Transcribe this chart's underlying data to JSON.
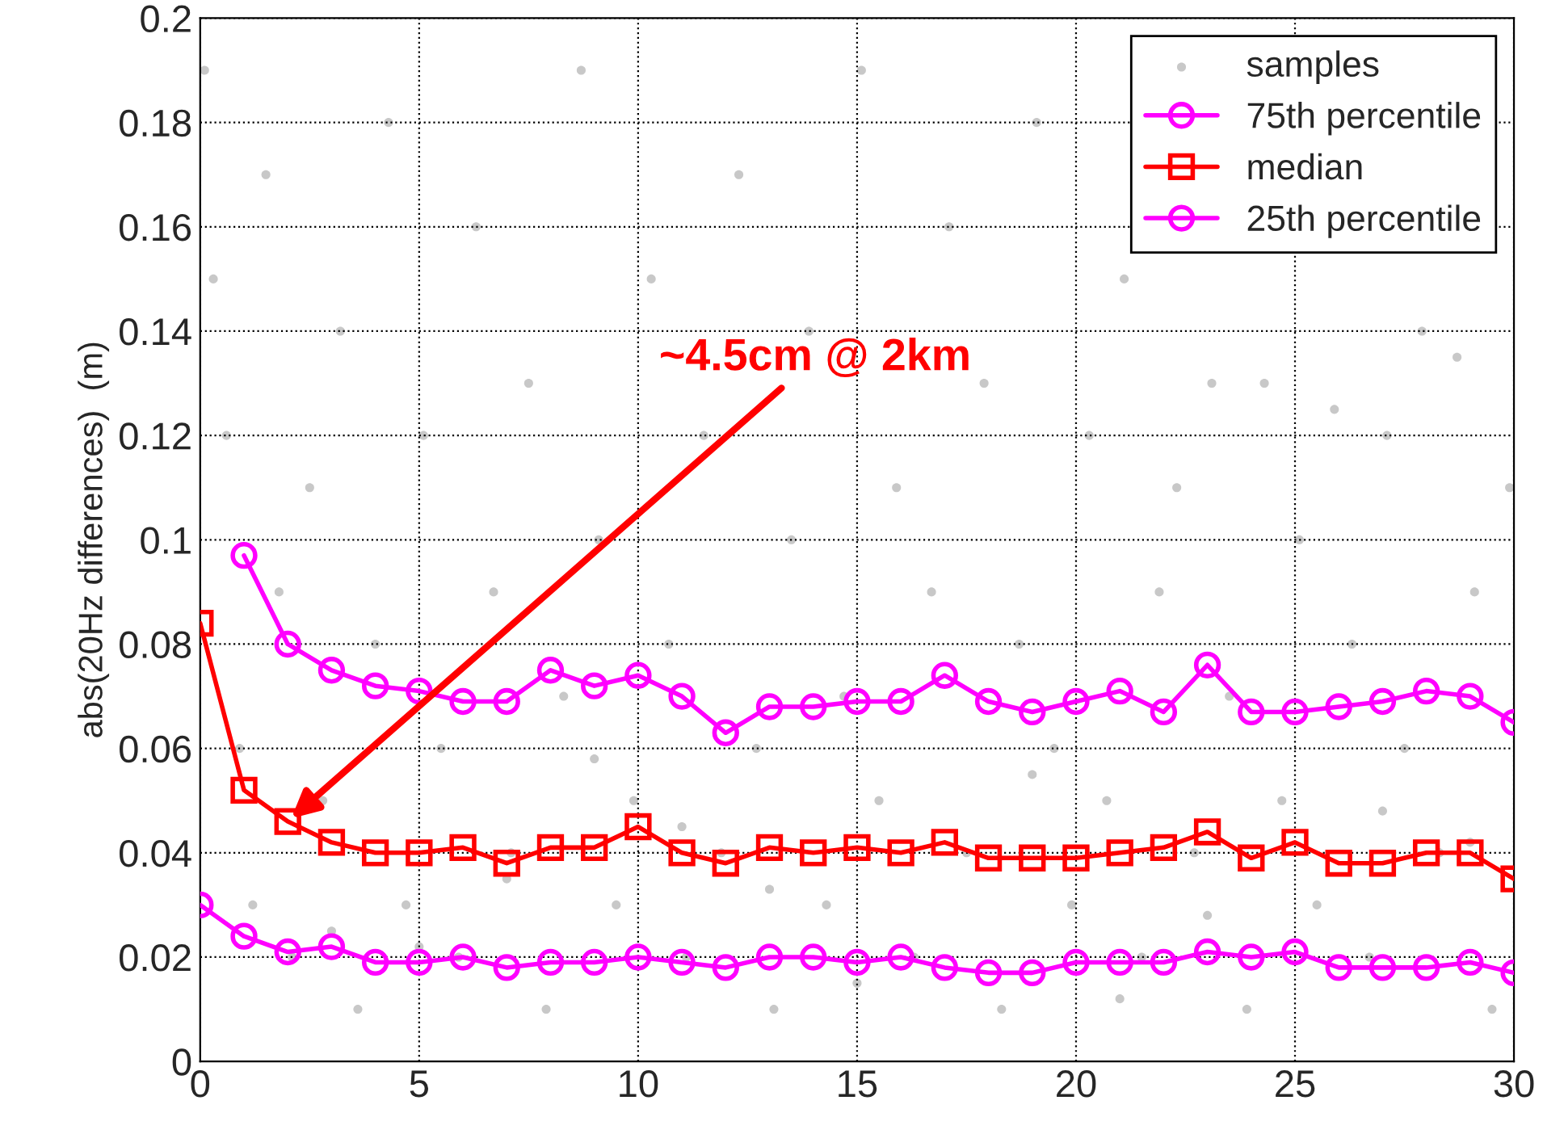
{
  "chart_data": {
    "type": "line",
    "ylabel": "abs(20Hz differences)  (m)",
    "xlim": [
      0,
      30
    ],
    "ylim": [
      0,
      0.2
    ],
    "xticks": [
      0,
      5,
      10,
      15,
      20,
      25,
      30
    ],
    "yticks": [
      0,
      0.02,
      0.04,
      0.06,
      0.08,
      0.1,
      0.12,
      0.14,
      0.16,
      0.18,
      0.2
    ],
    "grid": true,
    "legend": "top right",
    "x": [
      0,
      1,
      2,
      3,
      4,
      5,
      6,
      7,
      8,
      9,
      10,
      11,
      12,
      13,
      14,
      15,
      16,
      17,
      18,
      19,
      20,
      21,
      22,
      23,
      24,
      25,
      26,
      27,
      28,
      29,
      30
    ],
    "series": [
      {
        "name": "samples",
        "type": "scatter",
        "color": "#c8c8c8",
        "marker": "circle",
        "x": [
          0.1,
          0.3,
          0.6,
          0.9,
          1.2,
          1.5,
          1.8,
          2.1,
          2.5,
          2.8,
          3.2,
          3.6,
          4.0,
          4.3,
          4.7,
          5.1,
          5.5,
          5.9,
          6.3,
          6.7,
          7.1,
          7.5,
          7.9,
          8.3,
          8.7,
          9.1,
          9.5,
          9.9,
          10.3,
          10.7,
          11.1,
          11.5,
          11.9,
          12.3,
          12.7,
          13.1,
          13.5,
          13.9,
          14.3,
          14.7,
          15.1,
          15.5,
          15.9,
          16.3,
          16.7,
          17.1,
          17.5,
          17.9,
          18.3,
          18.7,
          19.1,
          19.5,
          19.9,
          20.3,
          20.7,
          21.1,
          21.5,
          21.9,
          22.3,
          22.7,
          23.1,
          23.5,
          23.9,
          24.3,
          24.7,
          25.1,
          25.5,
          25.9,
          26.3,
          26.7,
          27.1,
          27.5,
          27.9,
          28.3,
          28.7,
          29.1,
          29.5,
          29.9,
          3.0,
          7.0,
          11.0,
          15.0,
          19.0,
          23.0,
          27.0,
          5.0,
          13.0,
          21.0,
          29.0,
          9.0
        ],
        "values": [
          0.19,
          0.15,
          0.12,
          0.06,
          0.03,
          0.17,
          0.09,
          0.02,
          0.11,
          0.05,
          0.14,
          0.01,
          0.08,
          0.18,
          0.03,
          0.12,
          0.06,
          0.02,
          0.16,
          0.09,
          0.04,
          0.13,
          0.01,
          0.07,
          0.19,
          0.1,
          0.03,
          0.05,
          0.15,
          0.08,
          0.02,
          0.12,
          0.04,
          0.17,
          0.06,
          0.01,
          0.1,
          0.14,
          0.03,
          0.07,
          0.19,
          0.05,
          0.11,
          0.02,
          0.09,
          0.16,
          0.04,
          0.13,
          0.01,
          0.08,
          0.18,
          0.06,
          0.03,
          0.12,
          0.05,
          0.15,
          0.02,
          0.09,
          0.11,
          0.04,
          0.13,
          0.07,
          0.01,
          0.13,
          0.05,
          0.1,
          0.03,
          0.125,
          0.08,
          0.02,
          0.12,
          0.06,
          0.14,
          0.04,
          0.135,
          0.09,
          0.01,
          0.11,
          0.025,
          0.035,
          0.045,
          0.015,
          0.055,
          0.028,
          0.048,
          0.022,
          0.033,
          0.012,
          0.042,
          0.058
        ]
      },
      {
        "name": "75th percentile",
        "color": "#ff00ff",
        "marker": "circle",
        "values": [
          null,
          0.097,
          0.08,
          0.075,
          0.072,
          0.071,
          0.069,
          0.069,
          0.075,
          0.072,
          0.074,
          0.07,
          0.063,
          0.068,
          0.068,
          0.069,
          0.069,
          0.074,
          0.069,
          0.067,
          0.069,
          0.071,
          0.067,
          0.076,
          0.067,
          0.067,
          0.068,
          0.069,
          0.071,
          0.07,
          0.065
        ]
      },
      {
        "name": "median",
        "color": "#ff0000",
        "marker": "square",
        "values": [
          0.084,
          0.052,
          0.046,
          0.042,
          0.04,
          0.04,
          0.041,
          0.038,
          0.041,
          0.041,
          0.045,
          0.04,
          0.038,
          0.041,
          0.04,
          0.041,
          0.04,
          0.042,
          0.039,
          0.039,
          0.039,
          0.04,
          0.041,
          0.044,
          0.039,
          0.042,
          0.038,
          0.038,
          0.04,
          0.04,
          0.035
        ]
      },
      {
        "name": "25th percentile",
        "color": "#ff00ff",
        "marker": "circle",
        "values": [
          0.03,
          0.024,
          0.021,
          0.022,
          0.019,
          0.019,
          0.02,
          0.018,
          0.019,
          0.019,
          0.02,
          0.019,
          0.018,
          0.02,
          0.02,
          0.019,
          0.02,
          0.018,
          0.017,
          0.017,
          0.019,
          0.019,
          0.019,
          0.021,
          0.02,
          0.021,
          0.018,
          0.018,
          0.018,
          0.019,
          0.017
        ]
      }
    ],
    "annotations": [
      {
        "text": "~4.5cm @ 2km",
        "x": 2,
        "y": 0.046
      }
    ]
  }
}
